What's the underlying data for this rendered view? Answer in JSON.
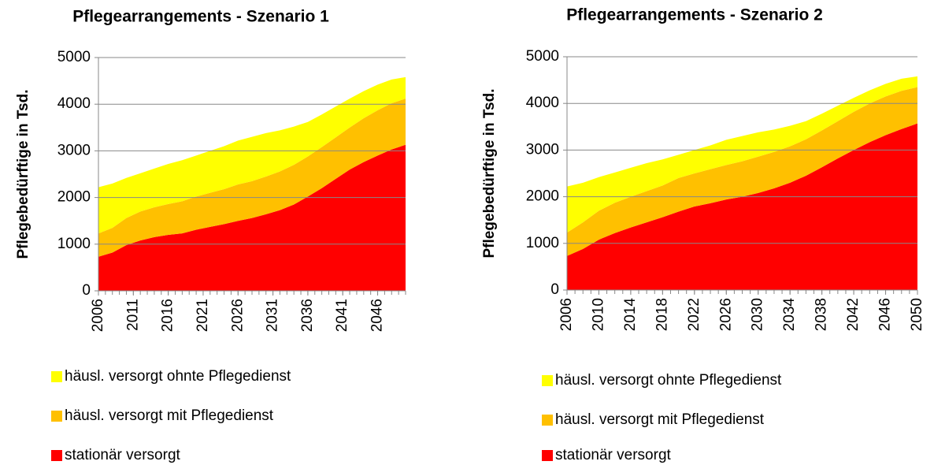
{
  "chart_data": [
    {
      "type": "stacked_area",
      "title": "Pflegearrangements - Szenario 1",
      "y_label": "Pflegebedürftige in Tsd.",
      "x": [
        2006,
        2008,
        2010,
        2012,
        2014,
        2016,
        2018,
        2020,
        2022,
        2024,
        2026,
        2028,
        2030,
        2032,
        2034,
        2036,
        2038,
        2040,
        2042,
        2044,
        2046,
        2048,
        2050
      ],
      "xlim": [
        2006,
        2050
      ],
      "xticks": [
        2006,
        2011,
        2016,
        2021,
        2026,
        2031,
        2036,
        2041,
        2046
      ],
      "ylim": [
        0,
        5000
      ],
      "yticks": [
        0,
        1000,
        2000,
        3000,
        4000,
        5000
      ],
      "grid": true,
      "series": [
        {
          "name": "stationär versorgt",
          "color": "#ff0000",
          "values": [
            730,
            820,
            980,
            1080,
            1150,
            1200,
            1230,
            1310,
            1370,
            1430,
            1500,
            1560,
            1640,
            1730,
            1850,
            2020,
            2200,
            2400,
            2600,
            2760,
            2900,
            3030,
            3130
          ]
        },
        {
          "name": "häusl. versorgt mit Pflegedienst",
          "color": "#ffc000",
          "values": [
            500,
            530,
            580,
            620,
            640,
            660,
            690,
            710,
            730,
            750,
            780,
            790,
            810,
            830,
            850,
            860,
            880,
            890,
            900,
            940,
            970,
            990,
            990
          ]
        },
        {
          "name": "häusl. versorgt ohnte Pflegedienst",
          "color": "#ffff00",
          "values": [
            990,
            950,
            860,
            820,
            830,
            860,
            880,
            880,
            900,
            920,
            940,
            950,
            930,
            880,
            820,
            740,
            700,
            660,
            620,
            580,
            550,
            510,
            460
          ]
        }
      ]
    },
    {
      "type": "stacked_area",
      "title": "Pflegearrangements - Szenario 2",
      "y_label": "Pflegebedürftige in Tsd.",
      "x": [
        2006,
        2008,
        2010,
        2012,
        2014,
        2016,
        2018,
        2020,
        2022,
        2024,
        2026,
        2028,
        2030,
        2032,
        2034,
        2036,
        2038,
        2040,
        2042,
        2044,
        2046,
        2048,
        2050
      ],
      "xlim": [
        2006,
        2050
      ],
      "xticks": [
        2006,
        2010,
        2014,
        2018,
        2022,
        2026,
        2030,
        2034,
        2038,
        2042,
        2046,
        2050
      ],
      "ylim": [
        0,
        5000
      ],
      "yticks": [
        0,
        1000,
        2000,
        3000,
        4000,
        5000
      ],
      "grid": true,
      "series": [
        {
          "name": "stationär versorgt",
          "color": "#ff0000",
          "values": [
            730,
            880,
            1080,
            1220,
            1340,
            1450,
            1560,
            1680,
            1790,
            1860,
            1940,
            2000,
            2080,
            2180,
            2300,
            2450,
            2630,
            2820,
            3000,
            3170,
            3320,
            3450,
            3570
          ]
        },
        {
          "name": "häusl. versorgt mit Pflegedienst",
          "color": "#ffc000",
          "values": [
            500,
            570,
            620,
            650,
            660,
            670,
            680,
            720,
            710,
            730,
            740,
            760,
            780,
            780,
            780,
            780,
            790,
            800,
            820,
            830,
            830,
            820,
            780
          ]
        },
        {
          "name": "häusl. versorgt ohnte Pflegedienst",
          "color": "#ffff00",
          "values": [
            990,
            850,
            720,
            650,
            620,
            600,
            560,
            500,
            500,
            510,
            540,
            540,
            520,
            480,
            440,
            390,
            360,
            330,
            300,
            280,
            270,
            260,
            230
          ]
        }
      ]
    }
  ]
}
